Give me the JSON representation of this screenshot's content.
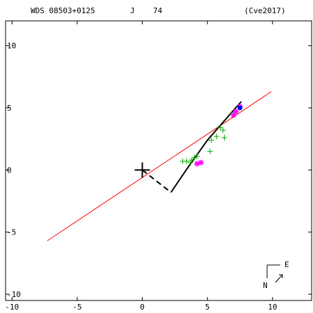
{
  "header": {
    "left": "WDS 08503+0125",
    "middle": "J    74",
    "right": "(Cve2017)"
  },
  "compass": {
    "east": "E",
    "north": "N"
  },
  "colors": {
    "axis": "#000000",
    "line_of_nodes": "#ff0000",
    "orbit": "#000000",
    "observations": "#00aa00",
    "highlighted": "#ff00ff",
    "current": "#0000ff"
  },
  "chart_data": {
    "type": "scatter",
    "title": "",
    "xlabel": "",
    "ylabel": "",
    "xlim": [
      -10.5,
      13
    ],
    "ylim": [
      -10.5,
      12
    ],
    "x_ticks": [
      -10,
      -5,
      0,
      5,
      10
    ],
    "y_ticks": [
      10,
      5,
      0,
      -5,
      -10
    ],
    "x_tick_labels": [
      "-10",
      "-5",
      "0",
      "5",
      "10"
    ],
    "y_tick_labels": [
      "10",
      "5",
      "0",
      "-5",
      "-10"
    ],
    "primary_star": [
      0,
      0
    ],
    "line_of_nodes": [
      [
        -7.3,
        -5.7
      ],
      [
        9.9,
        6.3
      ]
    ],
    "periastron_line": [
      [
        0,
        0
      ],
      [
        2.2,
        -1.8
      ]
    ],
    "orbit_path": [
      [
        2.2,
        -1.8
      ],
      [
        3.5,
        0.2
      ],
      [
        5.0,
        2.4
      ],
      [
        6.0,
        3.6
      ],
      [
        7.0,
        4.8
      ],
      [
        7.6,
        5.5
      ]
    ],
    "series": [
      {
        "marker": "plus",
        "points": [
          [
            3.1,
            0.7
          ],
          [
            3.4,
            0.7
          ],
          [
            3.7,
            0.6
          ],
          [
            3.8,
            0.8
          ],
          [
            4.0,
            1.0
          ],
          [
            4.2,
            1.1
          ],
          [
            5.2,
            1.5
          ],
          [
            5.3,
            2.4
          ],
          [
            5.7,
            2.7
          ],
          [
            6.0,
            3.4
          ],
          [
            6.2,
            3.2
          ],
          [
            6.3,
            2.6
          ],
          [
            7.0,
            4.6
          ]
        ]
      },
      {
        "marker": "asterisk",
        "points": [
          [
            4.2,
            0.5
          ],
          [
            4.5,
            0.6
          ],
          [
            7.0,
            4.4
          ],
          [
            7.2,
            4.7
          ],
          [
            7.5,
            5.1
          ]
        ]
      },
      {
        "marker": "dot",
        "points": [
          [
            7.5,
            5.0
          ]
        ]
      }
    ]
  }
}
